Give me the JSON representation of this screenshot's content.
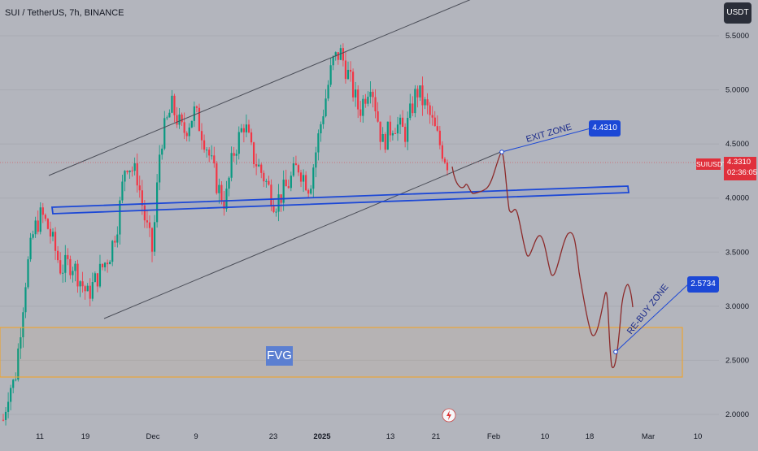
{
  "header": {
    "title": "SUI / TetherUS, 7h, BINANCE",
    "currency": "USDT"
  },
  "current": {
    "symbol": "SUIUSDT",
    "price": "4.3310",
    "countdown": "02:36:05",
    "color": "#e0303c"
  },
  "annotations": {
    "exit_zone": "EXIT ZONE",
    "exit_price": "4.4310",
    "rebuy_zone": "RE-BUY ZONE",
    "rebuy_price": "2.5734",
    "fvg": "FVG"
  },
  "colors": {
    "up": "#089981",
    "down": "#f23645",
    "channel_line": "#4a4d57",
    "support_rect": "#1c48d6",
    "fvg_border": "#f7a21b",
    "projection": "#8c2a2a",
    "callout": "#1c48d6"
  },
  "chart_data": {
    "type": "candlestick",
    "title": "SUI / TetherUS, 7h, BINANCE",
    "y_axis": {
      "ticks": [
        2.0,
        2.5,
        3.0,
        3.5,
        4.0,
        4.5,
        5.0,
        5.5
      ],
      "tick_labels": [
        "2.0000",
        "2.5000",
        "3.0000",
        "3.5000",
        "4.0000",
        "4.5000",
        "5.0000",
        "5.5000"
      ],
      "ylim": [
        1.93,
        5.6
      ]
    },
    "x_axis": {
      "tick_labels": [
        "11",
        "19",
        "Dec",
        "9",
        "23",
        "2025",
        "13",
        "21",
        "Feb",
        "10",
        "18",
        "Mar",
        "10"
      ]
    },
    "price_path": [
      [
        0,
        1.95
      ],
      [
        0.03,
        2.25
      ],
      [
        0.06,
        2.3
      ],
      [
        0.09,
        2.8
      ],
      [
        0.12,
        3.3
      ],
      [
        0.16,
        3.7
      ],
      [
        0.2,
        3.85
      ],
      [
        0.24,
        3.7
      ],
      [
        0.3,
        3.35
      ],
      [
        0.36,
        3.4
      ],
      [
        0.44,
        3.1
      ],
      [
        0.5,
        3.3
      ],
      [
        0.56,
        3.5
      ],
      [
        0.6,
        3.8
      ],
      [
        0.64,
        4.35
      ],
      [
        0.7,
        4.2
      ],
      [
        0.74,
        3.8
      ],
      [
        0.78,
        3.5
      ],
      [
        0.82,
        4.5
      ],
      [
        0.88,
        4.85
      ],
      [
        0.94,
        4.6
      ],
      [
        1.0,
        4.8
      ],
      [
        1.06,
        4.5
      ],
      [
        1.12,
        4.1
      ],
      [
        1.16,
        3.95
      ],
      [
        1.2,
        4.4
      ],
      [
        1.26,
        4.7
      ],
      [
        1.3,
        4.4
      ],
      [
        1.36,
        4.2
      ],
      [
        1.42,
        3.95
      ],
      [
        1.48,
        4.1
      ],
      [
        1.54,
        4.3
      ],
      [
        1.6,
        4.1
      ],
      [
        1.66,
        4.7
      ],
      [
        1.72,
        5.25
      ],
      [
        1.76,
        5.35
      ],
      [
        1.8,
        5.15
      ],
      [
        1.86,
        4.8
      ],
      [
        1.92,
        5.1
      ],
      [
        1.98,
        4.5
      ],
      [
        2.04,
        4.7
      ],
      [
        2.1,
        4.6
      ],
      [
        2.16,
        5.0
      ],
      [
        2.22,
        4.8
      ],
      [
        2.28,
        4.5
      ],
      [
        2.32,
        4.33
      ]
    ],
    "series": [
      {
        "name": "channel upper",
        "type": "line",
        "points": [
          [
            "2024-11-01",
            4.24
          ],
          [
            "2025-02-08",
            6.06
          ]
        ]
      },
      {
        "name": "channel lower",
        "type": "line",
        "points": [
          [
            "2024-11-20",
            2.88
          ],
          [
            "2025-02-03",
            4.45
          ]
        ]
      },
      {
        "name": "support zone",
        "type": "rectangle",
        "top": [
          3.92,
          4.12
        ],
        "bottom": [
          3.87,
          4.07
        ]
      },
      {
        "name": "FVG",
        "type": "rectangle",
        "y_range": [
          2.36,
          2.82
        ]
      },
      {
        "name": "projection",
        "type": "line",
        "values": [
          4.3,
          4.05,
          4.12,
          4.45,
          3.9,
          3.55,
          3.7,
          3.3,
          3.6,
          2.9,
          3.0,
          2.4,
          2.6,
          3.2,
          3.0
        ]
      }
    ]
  }
}
